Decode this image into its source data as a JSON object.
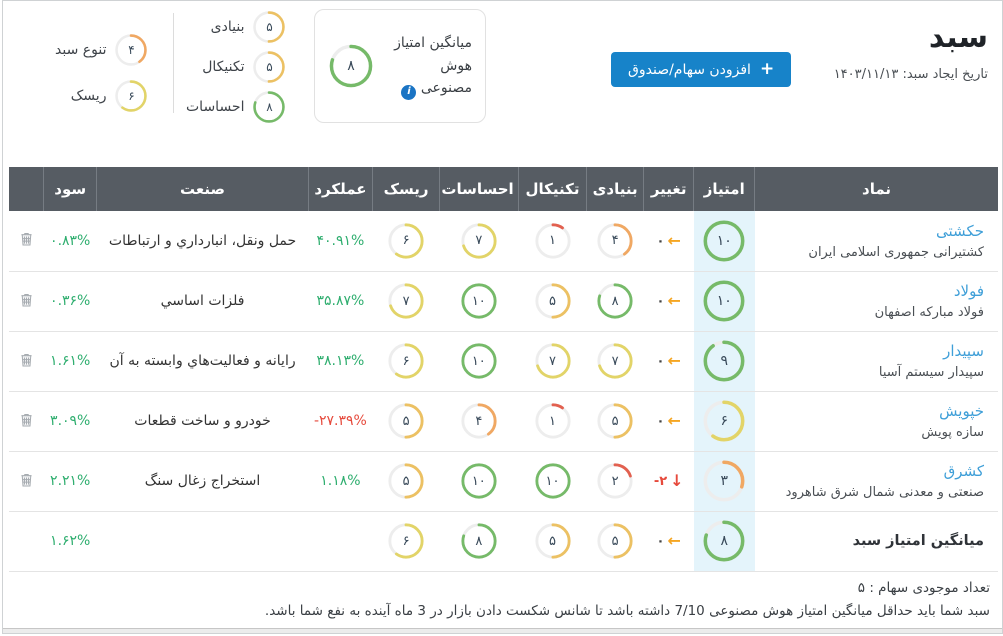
{
  "colors": {
    "accent_blue": "#1783c9",
    "link_blue": "#3f9fd8",
    "green": "#2fae6f",
    "red": "#e64a3c",
    "orange_arrow": "#f5a623",
    "gauge_green": "#76ba69",
    "gauge_yellow": "#e2d468",
    "gauge_amber": "#ecc163",
    "gauge_orange": "#f0a863",
    "gauge_red": "#e2604f",
    "header_bg": "#565c63",
    "score_cell_bg": "#e4f4fb"
  },
  "header": {
    "title": "سبد",
    "date_label": "تاریخ ایجاد سبد:",
    "date_value": "۱۴۰۳/۱۱/۱۳",
    "add_button_label": "افزودن سهام/صندوق",
    "plus": "+"
  },
  "gauges": {
    "ai": {
      "label": "میانگین امتیاز هوش مصنوعی",
      "value": 8,
      "text": "۸",
      "info_icon": "i"
    },
    "metrics": [
      {
        "id": "fundamental",
        "label": "بنیادی",
        "value": 5,
        "text": "۵"
      },
      {
        "id": "technical",
        "label": "تکنیکال",
        "value": 5,
        "text": "۵"
      },
      {
        "id": "sentiment",
        "label": "احساسات",
        "value": 8,
        "text": "۸"
      }
    ],
    "portfolio": [
      {
        "id": "diversity",
        "label": "تنوع سبد",
        "value": 4,
        "text": "۴"
      },
      {
        "id": "risk",
        "label": "ریسک",
        "value": 6,
        "text": "۶"
      }
    ]
  },
  "table": {
    "headers": {
      "symbol": "نماد",
      "score": "امتیاز",
      "change": "تغییر",
      "fundamental": "بنیادی",
      "technical": "تکنیکال",
      "sentiment": "احساسات",
      "risk": "ریسک",
      "performance": "عملکرد",
      "industry": "صنعت",
      "profit": "سود",
      "actions": ""
    },
    "rows": [
      {
        "symbol": "حکشتی",
        "company": "کشتیرانی جمهوری اسلامی ایران",
        "score": {
          "value": 10,
          "text": "۱۰"
        },
        "change": {
          "text": "۰",
          "arrow": "left"
        },
        "fundamental": {
          "value": 4,
          "text": "۴"
        },
        "technical": {
          "value": 1,
          "text": "۱"
        },
        "sentiment": {
          "value": 7,
          "text": "۷"
        },
        "risk": {
          "value": 6,
          "text": "۶"
        },
        "performance": {
          "text": "۴۰.۹۱%",
          "negative": false
        },
        "industry": "حمل ونقل، انبارداري و ارتباطات",
        "profit": "۰.۸۳%"
      },
      {
        "symbol": "فولاد",
        "company": "فولاد مبارکه اصفهان",
        "score": {
          "value": 10,
          "text": "۱۰"
        },
        "change": {
          "text": "۰",
          "arrow": "left"
        },
        "fundamental": {
          "value": 8,
          "text": "۸"
        },
        "technical": {
          "value": 5,
          "text": "۵"
        },
        "sentiment": {
          "value": 10,
          "text": "۱۰"
        },
        "risk": {
          "value": 7,
          "text": "۷"
        },
        "performance": {
          "text": "۳۵.۸۷%",
          "negative": false
        },
        "industry": "فلزات اساسي",
        "profit": "۰.۳۶%"
      },
      {
        "symbol": "سپیدار",
        "company": "سپیدار سیستم آسیا",
        "score": {
          "value": 9,
          "text": "۹"
        },
        "change": {
          "text": "۰",
          "arrow": "left"
        },
        "fundamental": {
          "value": 7,
          "text": "۷"
        },
        "technical": {
          "value": 7,
          "text": "۷"
        },
        "sentiment": {
          "value": 10,
          "text": "۱۰"
        },
        "risk": {
          "value": 6,
          "text": "۶"
        },
        "performance": {
          "text": "۳۸.۱۳%",
          "negative": false
        },
        "industry": "رایانه و فعالیت‌هاي وابسته به آن",
        "profit": "۱.۶۱%"
      },
      {
        "symbol": "خپویش",
        "company": "سازه پویش",
        "score": {
          "value": 6,
          "text": "۶"
        },
        "change": {
          "text": "۰",
          "arrow": "left"
        },
        "fundamental": {
          "value": 5,
          "text": "۵"
        },
        "technical": {
          "value": 1,
          "text": "۱"
        },
        "sentiment": {
          "value": 4,
          "text": "۴"
        },
        "risk": {
          "value": 5,
          "text": "۵"
        },
        "performance": {
          "text": "-۲۷.۳۹%",
          "negative": true
        },
        "industry": "خودرو و ساخت قطعات",
        "profit": "۳.۰۹%"
      },
      {
        "symbol": "کشرق",
        "company": "صنعتی و معدنی شمال شرق شاهرود",
        "score": {
          "value": 3,
          "text": "۳"
        },
        "change": {
          "text": "-۲",
          "arrow": "down"
        },
        "fundamental": {
          "value": 2,
          "text": "۲"
        },
        "technical": {
          "value": 10,
          "text": "۱۰"
        },
        "sentiment": {
          "value": 10,
          "text": "۱۰"
        },
        "risk": {
          "value": 5,
          "text": "۵"
        },
        "performance": {
          "text": "۱.۱۸%",
          "negative": false
        },
        "industry": "استخراج زغال سنگ",
        "profit": "۲.۲۱%"
      }
    ],
    "average_row": {
      "label": "میانگین امتیاز سبد",
      "score": {
        "value": 8,
        "text": "۸"
      },
      "change": {
        "text": "۰",
        "arrow": "left"
      },
      "fundamental": {
        "value": 5,
        "text": "۵"
      },
      "technical": {
        "value": 5,
        "text": "۵"
      },
      "sentiment": {
        "value": 8,
        "text": "۸"
      },
      "risk": {
        "value": 6,
        "text": "۶"
      },
      "profit": "۱.۶۲%"
    }
  },
  "footer": {
    "holdings_count": "تعداد موجودی سهام : ۵",
    "note": "سبد شما باید حداقل میانگین امتیاز هوش مصنوعی 7/10 داشته باشد تا شانس شکست دادن بازار در 3 ماه آینده به نفع شما باشد."
  }
}
